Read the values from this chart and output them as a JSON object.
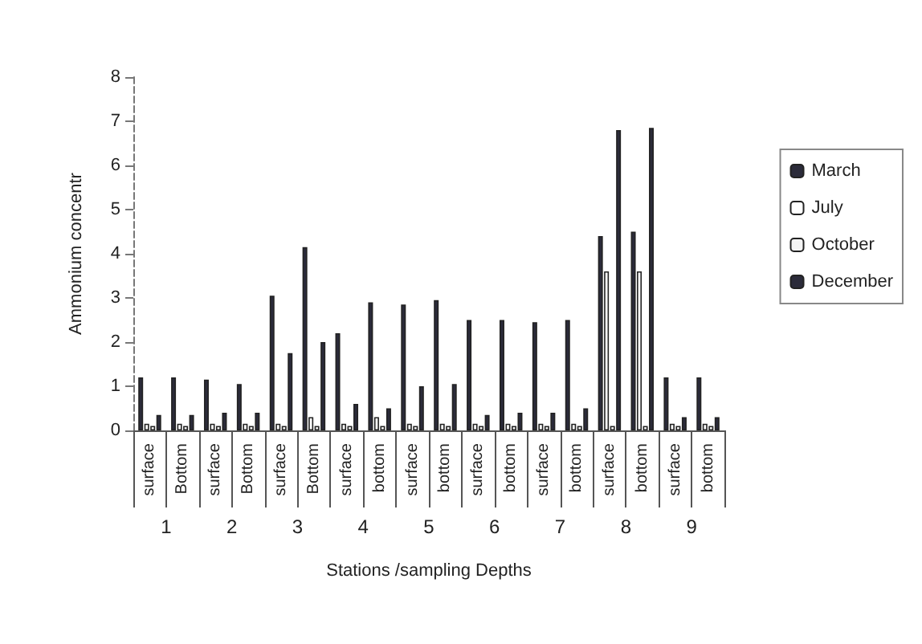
{
  "chart_data": {
    "type": "bar",
    "xlabel": "Stations /sampling Depths",
    "ylabel": "Ammonium concentr",
    "categories": [
      "surface",
      "Bottom",
      "surface",
      "Bottom",
      "surface",
      "Bottom",
      "surface",
      "bottom",
      "surface",
      "bottom",
      "surface",
      "bottom",
      "surface",
      "bottom",
      "surface",
      "bottom",
      "surface",
      "bottom"
    ],
    "annotations": [
      "1",
      "2",
      "3",
      "4",
      "5",
      "6",
      "7",
      "8",
      "9"
    ],
    "series": [
      {
        "name": "March",
        "color": "#2b2b3a",
        "values": [
          1.2,
          1.2,
          1.15,
          1.05,
          3.05,
          4.15,
          2.2,
          2.9,
          2.85,
          2.95,
          2.5,
          2.5,
          2.45,
          2.5,
          4.4,
          4.5,
          1.2,
          1.2
        ]
      },
      {
        "name": "July",
        "color": "#ffffff",
        "values": [
          0.15,
          0.15,
          0.15,
          0.15,
          0.15,
          0.3,
          0.15,
          0.3,
          0.15,
          0.15,
          0.15,
          0.15,
          0.15,
          0.15,
          3.6,
          3.6,
          0.15,
          0.15
        ]
      },
      {
        "name": "October",
        "color": "#f4f4f4",
        "values": [
          0.1,
          0.1,
          0.1,
          0.1,
          0.1,
          0.1,
          0.1,
          0.1,
          0.1,
          0.1,
          0.1,
          0.1,
          0.1,
          0.1,
          0.1,
          0.1,
          0.1,
          0.1
        ]
      },
      {
        "name": "December",
        "color": "#2b2b3a",
        "values": [
          0.35,
          0.35,
          0.4,
          0.4,
          1.75,
          2.0,
          0.6,
          0.5,
          1.0,
          1.05,
          0.35,
          0.4,
          0.4,
          0.5,
          6.8,
          6.85,
          0.3,
          0.3
        ]
      }
    ],
    "ylim": [
      0,
      8
    ],
    "yticks": [
      0,
      1,
      2,
      3,
      4,
      5,
      6,
      7,
      8
    ],
    "grid": false,
    "legend": "right"
  }
}
